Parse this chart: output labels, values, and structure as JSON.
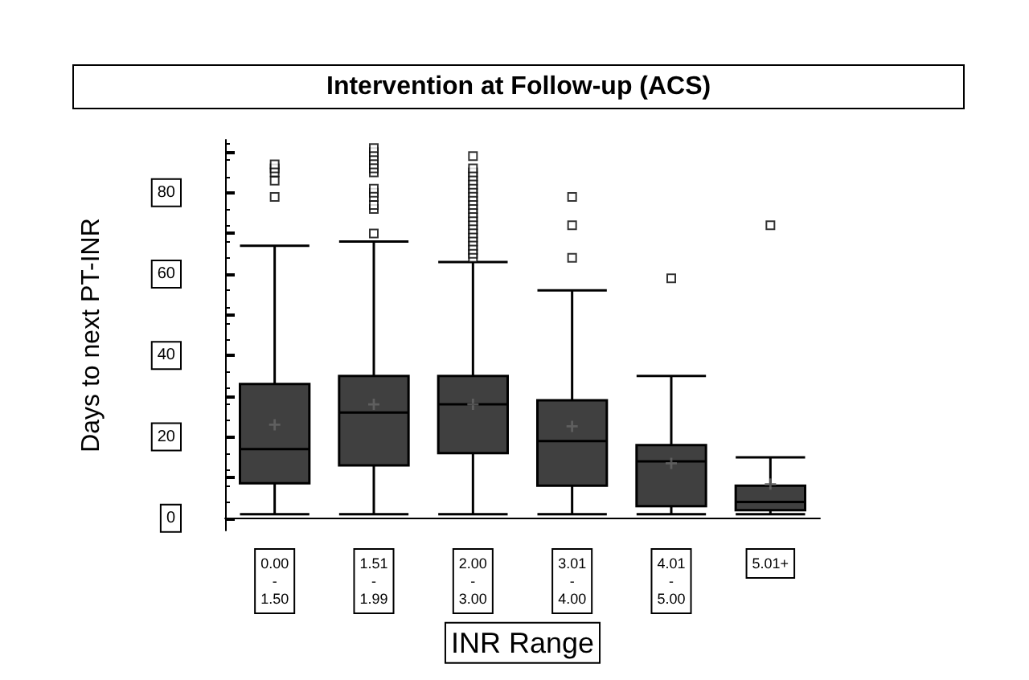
{
  "chart_data": {
    "type": "box",
    "title": "Intervention at Follow-up (ACS)",
    "xlabel": "INR Range",
    "ylabel": "Days to next PT-INR",
    "categories": [
      "0.00\n-\n1.50",
      "1.51\n-\n1.99",
      "2.00\n-\n3.00",
      "3.01\n-\n4.00",
      "4.01\n-\n5.00",
      "5.01+"
    ],
    "color": "#404040",
    "boxes": [
      {
        "low": 1,
        "q1": 8.6,
        "median": 17,
        "q3": 33,
        "high": 67,
        "mean": 23,
        "outliers": [
          79,
          83,
          85,
          86,
          87
        ]
      },
      {
        "low": 1,
        "q1": 13,
        "median": 26,
        "q3": 35,
        "high": 68,
        "mean": 28,
        "outliers": [
          70,
          76,
          77,
          79,
          80,
          81,
          85,
          86,
          87,
          88,
          89,
          90,
          91
        ]
      },
      {
        "low": 1,
        "q1": 16,
        "median": 28,
        "q3": 35,
        "high": 63,
        "mean": 28,
        "outliers": [
          64,
          65,
          66,
          67,
          68,
          69,
          70,
          71,
          72,
          73,
          74,
          75,
          76,
          77,
          78,
          79,
          80,
          81,
          82,
          83,
          84,
          85,
          86,
          89
        ]
      },
      {
        "low": 1,
        "q1": 8,
        "median": 19,
        "q3": 29,
        "high": 56,
        "mean": 22.6,
        "outliers": [
          64,
          72,
          79
        ]
      },
      {
        "low": 1,
        "q1": 3,
        "median": 14,
        "q3": 18,
        "high": 35,
        "mean": 13.5,
        "outliers": [
          59
        ]
      },
      {
        "low": 1,
        "q1": 2,
        "median": 4,
        "q3": 8,
        "high": 15,
        "mean": 8.4,
        "outliers": [
          72
        ]
      }
    ],
    "ylim": [
      -3,
      93
    ],
    "yticks": [
      0,
      {
        "value": 10,
        "label": null
      },
      20,
      {
        "value": 30,
        "label": null
      },
      40,
      {
        "value": 50,
        "label": null
      },
      60,
      {
        "value": 70,
        "label": null
      },
      80,
      {
        "value": 90,
        "label": null
      }
    ],
    "grid": false
  }
}
